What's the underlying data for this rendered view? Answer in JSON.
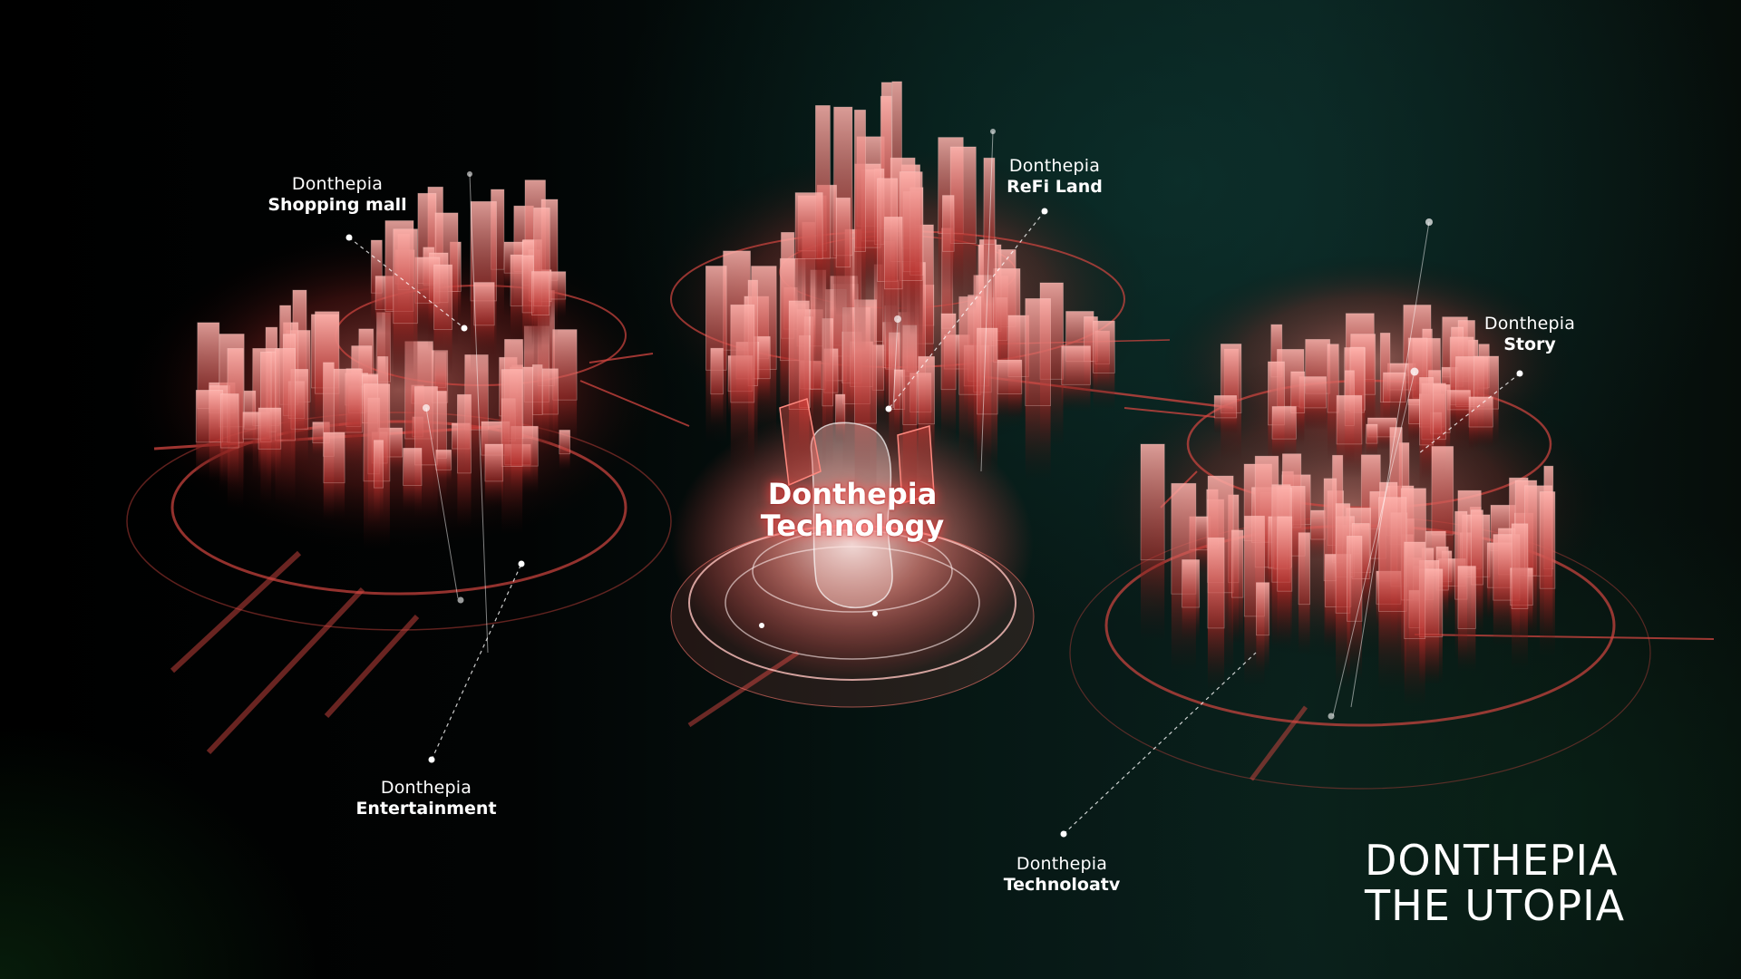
{
  "scene": {
    "description_colors": {
      "hologram": "#ff6a6a",
      "hologram_dark": "#7a1414",
      "leader_line": "#ffffff",
      "background_teal": "#0a1f1c"
    }
  },
  "labels": {
    "shopping_mall": {
      "brand": "Donthepia",
      "name": "Shopping mall"
    },
    "refi_land": {
      "brand": "Donthepia",
      "name": "ReFi Land"
    },
    "story": {
      "brand": "Donthepia",
      "name": "Story"
    },
    "entertainment": {
      "brand": "Donthepia",
      "name": "Entertainment"
    },
    "technology_small": {
      "brand": "Donthepia",
      "name": "Technoloatv"
    }
  },
  "center": {
    "line1": "Donthepia",
    "line2": "Technology"
  },
  "title": {
    "line1": "DONTHEPIA",
    "line2": "THE UTOPIA"
  }
}
